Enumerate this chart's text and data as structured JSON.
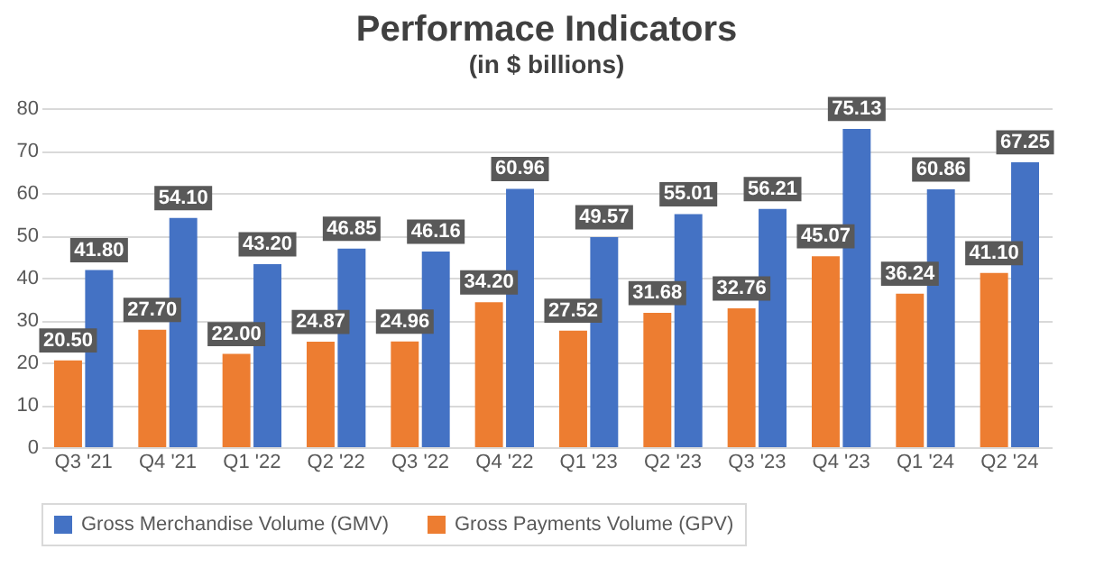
{
  "chart_data": {
    "type": "bar",
    "title": "Performace Indicators",
    "subtitle": "(in $ billions)",
    "categories": [
      "Q3 '21",
      "Q4 '21",
      "Q1 '22",
      "Q2 '22",
      "Q3 '22",
      "Q4 '22",
      "Q1 '23",
      "Q2 '23",
      "Q3 '23",
      "Q4 '23",
      "Q1 '24",
      "Q2 '24"
    ],
    "series": [
      {
        "name": "Gross Merchandise Volume (GMV)",
        "color": "#4472c4",
        "values": [
          41.8,
          54.1,
          43.2,
          46.85,
          46.16,
          60.96,
          49.57,
          55.01,
          56.21,
          75.13,
          60.86,
          67.25
        ],
        "value_labels": [
          "41.80",
          "54.10",
          "43.20",
          "46.85",
          "46.16",
          "60.96",
          "49.57",
          "55.01",
          "56.21",
          "75.13",
          "60.86",
          "67.25"
        ]
      },
      {
        "name": "Gross Payments Volume (GPV)",
        "color": "#ed7d31",
        "values": [
          20.5,
          27.7,
          22.0,
          24.87,
          24.96,
          34.2,
          27.52,
          31.68,
          32.76,
          45.07,
          36.24,
          41.1
        ],
        "value_labels": [
          "20.50",
          "27.70",
          "22.00",
          "24.87",
          "24.96",
          "34.20",
          "27.52",
          "31.68",
          "32.76",
          "45.07",
          "36.24",
          "41.10"
        ]
      }
    ],
    "ylim": [
      0,
      80
    ],
    "yticks": [
      0,
      10,
      20,
      30,
      40,
      50,
      60,
      70,
      80
    ],
    "grid": "y",
    "legend": "bottom"
  }
}
